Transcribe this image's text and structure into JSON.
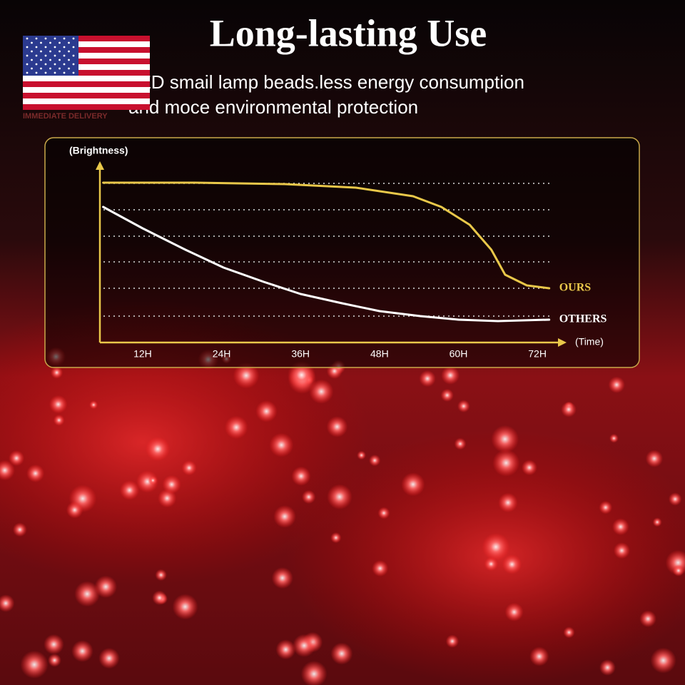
{
  "badge": "IMMEDIATE DELIVERY",
  "chart_data": {
    "type": "line",
    "title": "Long-lasting Use",
    "subtitle": [
      "LED smail lamp beads.less energy consumption",
      "and moce environmental protection"
    ],
    "y_label": "(Brightness)",
    "x_label": "(Time)",
    "xlim": [
      5.5,
      76
    ],
    "ylim": [
      0,
      100
    ],
    "xticks": [
      {
        "value": 12,
        "label": "12H"
      },
      {
        "value": 24,
        "label": "24H"
      },
      {
        "value": 36,
        "label": "36H"
      },
      {
        "value": 48,
        "label": "48H"
      },
      {
        "value": 60,
        "label": "60H"
      },
      {
        "value": 72,
        "label": "72H"
      }
    ],
    "series": [
      {
        "name": "OURS",
        "color": "#e9c84a",
        "x": [
          6,
          20,
          33.6,
          44.4,
          53.1,
          57.4,
          61.7,
          65,
          67.1,
          70.4,
          73.8
        ],
        "values": [
          89.6,
          89.6,
          88.8,
          86.8,
          82,
          76,
          66,
          52,
          38,
          32,
          30.4
        ]
      },
      {
        "name": "OTHERS",
        "color": "#ffffff",
        "x": [
          6,
          12,
          18.5,
          24.3,
          30.4,
          36,
          42.3,
          48,
          54.2,
          60,
          66,
          73.8
        ],
        "values": [
          76,
          64,
          52,
          42,
          34,
          27.2,
          22,
          17.6,
          14.8,
          12.8,
          12,
          12.8
        ]
      }
    ]
  }
}
